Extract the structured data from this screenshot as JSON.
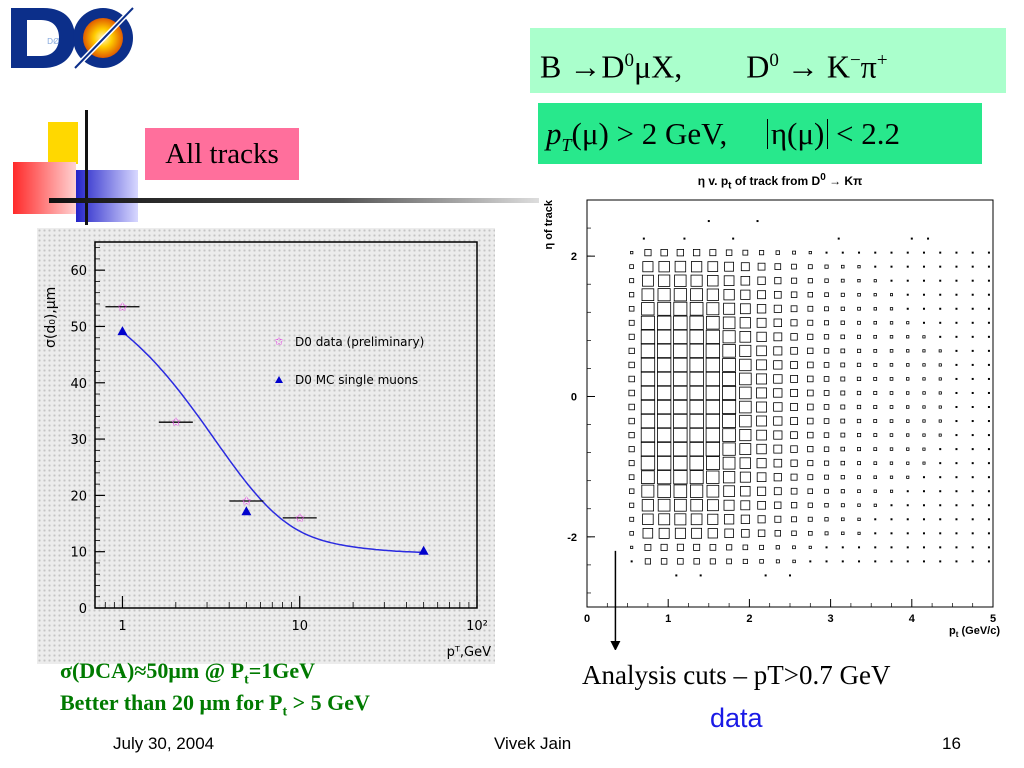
{
  "header": {
    "logo_text": "DØ",
    "formula1_parts": [
      "B",
      "→",
      "D",
      "0",
      "μX,",
      "D",
      "0",
      "→",
      "K",
      "−",
      "π",
      "+"
    ],
    "formula2_parts": [
      "p",
      "T",
      "(μ) > 2 GeV,",
      "η(μ)",
      "< 2.2"
    ]
  },
  "slide": {
    "badge": "All tracks",
    "caption_line1": "σ(DCA)≈50μm @ P",
    "caption_line1_sub": "t",
    "caption_line1_end": "=1GeV",
    "caption_line2": "Better than 20 μm for P",
    "caption_line2_sub": "t",
    "caption_line2_end": " > 5 GeV",
    "cuts_text": "Analysis cuts – pT>0.7 GeV",
    "data_label": "data"
  },
  "footer": {
    "date": "July 30, 2004",
    "author": "Vivek Jain",
    "page": "16"
  },
  "chart_data": [
    {
      "type": "scatter",
      "title": "",
      "ylabel": "σ(d₀),μm",
      "xlabel": "pᵀ,GeV",
      "x_scale": "log",
      "xlim": [
        0.7,
        100
      ],
      "ylim": [
        0,
        65
      ],
      "x_ticks": [
        "1",
        "10",
        "10²"
      ],
      "y_ticks": [
        0,
        10,
        20,
        30,
        40,
        50,
        60
      ],
      "legend": "right",
      "series": [
        {
          "name": "D0 data (preliminary)",
          "color": "#e040e0",
          "marker": "star",
          "x": [
            1,
            2,
            5,
            10
          ],
          "y": [
            53.5,
            33,
            19,
            16
          ]
        },
        {
          "name": "D0 MC single muons",
          "color": "#0000cc",
          "marker": "triangle",
          "x": [
            1,
            5,
            50
          ],
          "y": [
            49,
            17,
            10
          ]
        }
      ],
      "fit_curve_color": "#2a2ae0"
    },
    {
      "type": "heatmap",
      "title": "η v. p_t of track from D⁰ → Kπ",
      "title_parts": [
        "η v. p",
        "t",
        " of track from D",
        "0",
        " → Kπ"
      ],
      "xlabel": "p_t (GeV/c)",
      "xlabel_parts": [
        "p",
        "t",
        " (GeV/c)"
      ],
      "ylabel": "η of track",
      "xlim": [
        0,
        5
      ],
      "ylim": [
        -3,
        2.8
      ],
      "x_ticks": [
        0,
        1,
        2,
        3,
        4,
        5
      ],
      "y_ticks": [
        -2,
        0,
        2
      ],
      "cut_marker": {
        "x": 0.35,
        "note": "Analysis cuts – pT>0.7 GeV"
      }
    }
  ]
}
